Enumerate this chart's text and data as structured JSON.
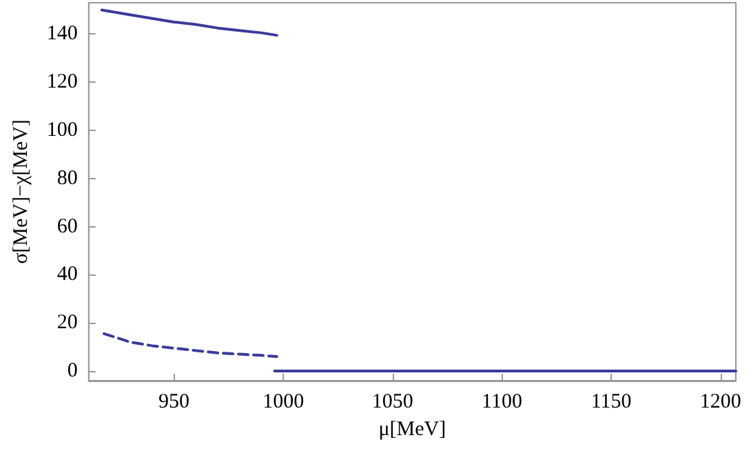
{
  "chart_data": {
    "type": "line",
    "xlabel": "μ[MeV]",
    "ylabel": "σ[MeV]−χ[MeV]",
    "xlim": [
      911,
      1207
    ],
    "xticks": [
      950,
      1000,
      1050,
      1100,
      1150,
      1200
    ],
    "ylim": [
      -4,
      153
    ],
    "yticks": [
      0,
      20,
      40,
      60,
      80,
      100,
      120,
      140
    ],
    "marker": "none",
    "series": [
      {
        "color": "#3a3a9c",
        "line_style": "solid",
        "x": [
          917,
          930,
          940,
          950,
          960,
          970,
          980,
          990,
          997
        ],
        "values": [
          150,
          148,
          146.5,
          145,
          144,
          142.5,
          141.5,
          140.5,
          139.5
        ]
      },
      {
        "color": "#3a3a9c",
        "line_style": "dashed",
        "x": [
          918,
          925,
          930,
          940,
          950,
          960,
          970,
          980,
          990,
          997
        ],
        "values": [
          15.5,
          13.5,
          12,
          10.5,
          9.5,
          8.5,
          7.5,
          7,
          6.5,
          6
        ]
      },
      {
        "color": "#3a3a9c",
        "line_style": "solid",
        "x": [
          996,
          1207
        ],
        "values": [
          0,
          0
        ]
      }
    ]
  }
}
